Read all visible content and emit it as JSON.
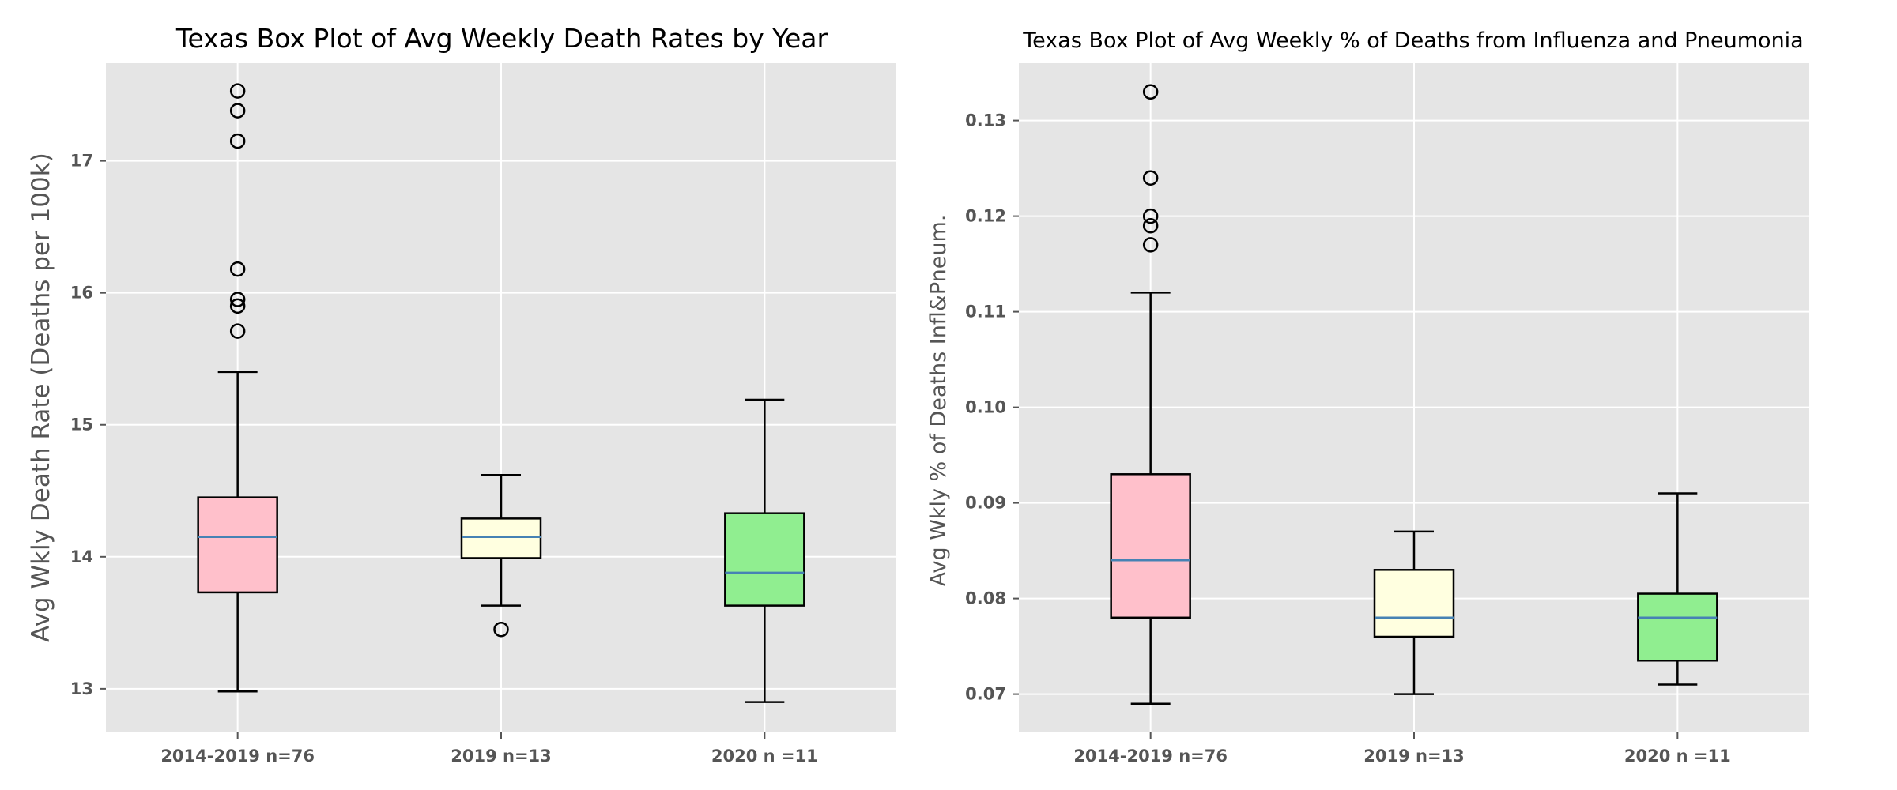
{
  "colors": {
    "plot_bg": "#e5e5e5",
    "grid": "#ffffff",
    "median": "#4682b4",
    "box_colors": [
      "#ffc0cb",
      "#ffffe0",
      "#90ee90"
    ]
  },
  "chart_data": [
    {
      "type": "box",
      "title": "Texas Box Plot of Avg Weekly Death Rates by Year",
      "xlabel": "",
      "ylabel": "Avg Wkly Death Rate (Deaths per 100k)",
      "ylim": [
        12.67,
        17.74
      ],
      "yticks": [
        13,
        14,
        15,
        16,
        17
      ],
      "ytick_labels": [
        "13",
        "14",
        "15",
        "16",
        "17"
      ],
      "grid": true,
      "categories": [
        "2014-2019 n=76",
        "2019 n=13",
        "2020 n =11"
      ],
      "boxes": [
        {
          "whisker_low": 12.98,
          "q1": 13.73,
          "median": 14.15,
          "q3": 14.45,
          "whisker_high": 15.4,
          "outliers": [
            15.71,
            15.9,
            15.95,
            16.18,
            17.15,
            17.38,
            17.53
          ]
        },
        {
          "whisker_low": 13.63,
          "q1": 13.99,
          "median": 14.15,
          "q3": 14.29,
          "whisker_high": 14.62,
          "outliers": [
            13.45
          ]
        },
        {
          "whisker_low": 12.9,
          "q1": 13.63,
          "median": 13.88,
          "q3": 14.33,
          "whisker_high": 15.19,
          "outliers": []
        }
      ]
    },
    {
      "type": "box",
      "title": "Texas Box Plot of Avg Weekly % of Deaths from Influenza and Pneumonia",
      "xlabel": "",
      "ylabel": "Avg Wkly % of Deaths Infl&Pneum.",
      "ylim": [
        0.066,
        0.136
      ],
      "yticks": [
        0.07,
        0.08,
        0.09,
        0.1,
        0.11,
        0.12,
        0.13
      ],
      "ytick_labels": [
        "0.07",
        "0.08",
        "0.09",
        "0.10",
        "0.11",
        "0.12",
        "0.13"
      ],
      "grid": true,
      "categories": [
        "2014-2019 n=76",
        "2019 n=13",
        "2020 n =11"
      ],
      "boxes": [
        {
          "whisker_low": 0.069,
          "q1": 0.078,
          "median": 0.084,
          "q3": 0.093,
          "whisker_high": 0.112,
          "outliers": [
            0.117,
            0.119,
            0.12,
            0.124,
            0.133
          ]
        },
        {
          "whisker_low": 0.07,
          "q1": 0.076,
          "median": 0.078,
          "q3": 0.083,
          "whisker_high": 0.087,
          "outliers": []
        },
        {
          "whisker_low": 0.071,
          "q1": 0.0735,
          "median": 0.078,
          "q3": 0.0805,
          "whisker_high": 0.091,
          "outliers": []
        }
      ]
    }
  ]
}
